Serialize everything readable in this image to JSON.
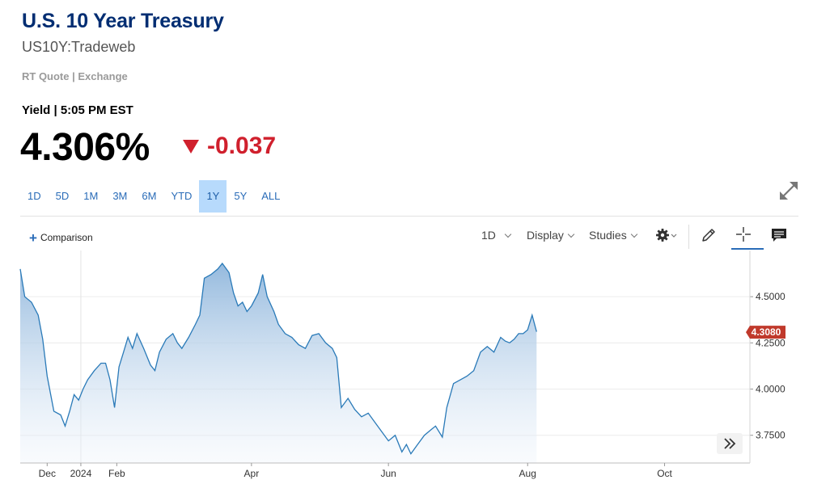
{
  "header": {
    "title": "U.S. 10 Year Treasury",
    "symbol": "US10Y:Tradeweb",
    "source": "RT Quote | Exchange",
    "quote_time": "Yield | 5:05 PM EST",
    "price": "4.306%",
    "change": "-0.037",
    "change_direction": "down"
  },
  "ranges": {
    "items": [
      "1D",
      "5D",
      "1M",
      "3M",
      "6M",
      "YTD",
      "1Y",
      "5Y",
      "ALL"
    ],
    "active": "1Y"
  },
  "toolbar": {
    "comparison_label": "Comparison",
    "interval_label": "1D",
    "display_label": "Display",
    "studies_label": "Studies"
  },
  "colors": {
    "title": "#002d72",
    "change_down": "#d0202d",
    "accent": "#2a6cb8",
    "line": "#2a7ab8",
    "current_marker": "#c0392b"
  },
  "chart_data": {
    "type": "area",
    "y_ticks": [
      "4.5000",
      "4.2500",
      "4.0000",
      "3.7500"
    ],
    "y_tick_values": [
      4.5,
      4.25,
      4.0,
      3.75
    ],
    "ylim": [
      3.6,
      4.75
    ],
    "x_ticks": [
      {
        "label": "Dec",
        "x": 12
      },
      {
        "label": "2024",
        "x": 27
      },
      {
        "label": "Feb",
        "x": 43
      },
      {
        "label": "Apr",
        "x": 103
      },
      {
        "label": "Jun",
        "x": 164
      },
      {
        "label": "Aug",
        "x": 226
      },
      {
        "label": "Oct",
        "x": 287
      }
    ],
    "xlim": [
      0,
      325
    ],
    "grid": "vertical at year boundary, horizontal at y ticks",
    "current_value": "4.3080",
    "series": [
      {
        "values": [
          [
            0,
            4.65
          ],
          [
            2,
            4.5
          ],
          [
            5,
            4.47
          ],
          [
            8,
            4.4
          ],
          [
            10,
            4.27
          ],
          [
            12,
            4.07
          ],
          [
            15,
            3.88
          ],
          [
            18,
            3.86
          ],
          [
            20,
            3.8
          ],
          [
            22,
            3.88
          ],
          [
            24,
            3.97
          ],
          [
            26,
            3.94
          ],
          [
            28,
            4.0
          ],
          [
            30,
            4.05
          ],
          [
            33,
            4.1
          ],
          [
            36,
            4.14
          ],
          [
            38,
            4.14
          ],
          [
            40,
            4.05
          ],
          [
            42,
            3.9
          ],
          [
            44,
            4.12
          ],
          [
            46,
            4.2
          ],
          [
            48,
            4.28
          ],
          [
            50,
            4.22
          ],
          [
            52,
            4.3
          ],
          [
            55,
            4.22
          ],
          [
            58,
            4.13
          ],
          [
            60,
            4.1
          ],
          [
            62,
            4.2
          ],
          [
            65,
            4.27
          ],
          [
            68,
            4.3
          ],
          [
            70,
            4.25
          ],
          [
            72,
            4.22
          ],
          [
            75,
            4.28
          ],
          [
            78,
            4.35
          ],
          [
            80,
            4.4
          ],
          [
            82,
            4.6
          ],
          [
            85,
            4.62
          ],
          [
            88,
            4.65
          ],
          [
            90,
            4.68
          ],
          [
            93,
            4.63
          ],
          [
            95,
            4.52
          ],
          [
            97,
            4.45
          ],
          [
            99,
            4.47
          ],
          [
            101,
            4.42
          ],
          [
            103,
            4.45
          ],
          [
            106,
            4.52
          ],
          [
            108,
            4.62
          ],
          [
            110,
            4.5
          ],
          [
            113,
            4.42
          ],
          [
            115,
            4.35
          ],
          [
            118,
            4.3
          ],
          [
            121,
            4.28
          ],
          [
            124,
            4.24
          ],
          [
            127,
            4.22
          ],
          [
            130,
            4.29
          ],
          [
            133,
            4.3
          ],
          [
            136,
            4.25
          ],
          [
            139,
            4.22
          ],
          [
            141,
            4.17
          ],
          [
            143,
            3.9
          ],
          [
            146,
            3.95
          ],
          [
            149,
            3.89
          ],
          [
            152,
            3.85
          ],
          [
            155,
            3.87
          ],
          [
            158,
            3.82
          ],
          [
            161,
            3.77
          ],
          [
            164,
            3.72
          ],
          [
            167,
            3.75
          ],
          [
            170,
            3.66
          ],
          [
            172,
            3.7
          ],
          [
            174,
            3.65
          ],
          [
            177,
            3.7
          ],
          [
            180,
            3.75
          ],
          [
            183,
            3.78
          ],
          [
            185,
            3.8
          ],
          [
            188,
            3.74
          ],
          [
            190,
            3.9
          ],
          [
            193,
            4.03
          ],
          [
            196,
            4.05
          ],
          [
            199,
            4.07
          ],
          [
            202,
            4.1
          ],
          [
            205,
            4.2
          ],
          [
            208,
            4.23
          ],
          [
            211,
            4.2
          ],
          [
            214,
            4.28
          ],
          [
            216,
            4.26
          ],
          [
            218,
            4.25
          ],
          [
            220,
            4.27
          ],
          [
            222,
            4.3
          ],
          [
            224,
            4.3
          ],
          [
            226,
            4.32
          ],
          [
            228,
            4.4
          ],
          [
            230,
            4.31
          ]
        ]
      }
    ]
  }
}
